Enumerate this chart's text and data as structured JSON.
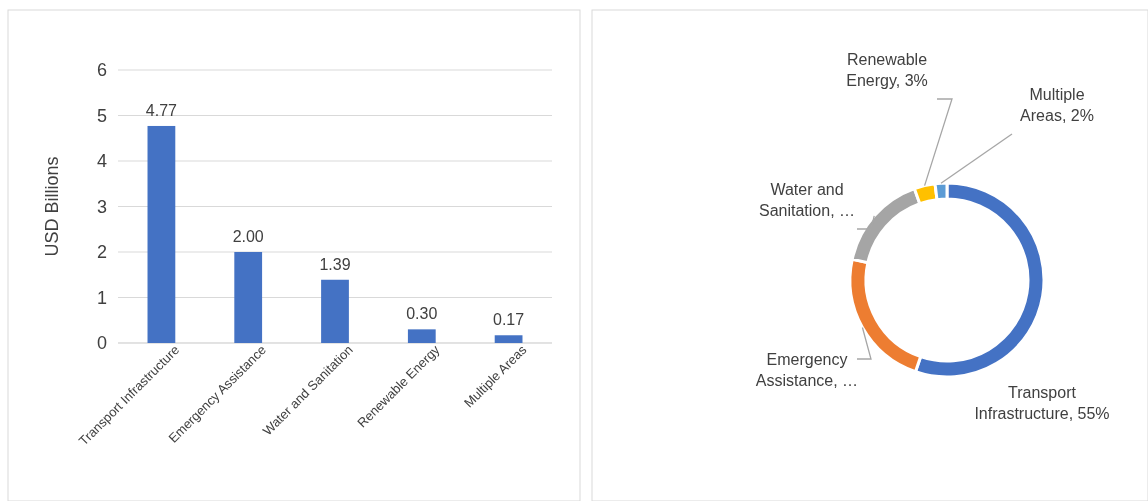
{
  "chart_data": [
    {
      "type": "bar",
      "ylabel": "USD Billions",
      "categories": [
        "Transport Infrastructure",
        "Emergency Assistance",
        "Water and Sanitation",
        "Renewable Energy",
        "Multiple Areas"
      ],
      "values": [
        4.77,
        2.0,
        1.39,
        0.3,
        0.17
      ],
      "color": "#4472c4",
      "value_labels": [
        "4.77",
        "2.00",
        "1.39",
        "0.30",
        "0.17"
      ],
      "ylim": [
        0,
        6
      ],
      "yticks": [
        0,
        1,
        2,
        3,
        4,
        5,
        6
      ],
      "grid": "y"
    },
    {
      "type": "donut",
      "categories": [
        "Transport Infrastructure",
        "Emergency Assistance",
        "Water and Sanitation",
        "Renewable Energy",
        "Multiple Areas"
      ],
      "values": [
        55.27,
        23.17,
        16.11,
        3.48,
        1.97
      ],
      "colors": [
        "#4472c4",
        "#ed7d31",
        "#a5a5a5",
        "#ffc000",
        "#5b9bd5"
      ],
      "value_labels": [
        "55%",
        "…",
        "…",
        "3%",
        "2%"
      ]
    }
  ]
}
